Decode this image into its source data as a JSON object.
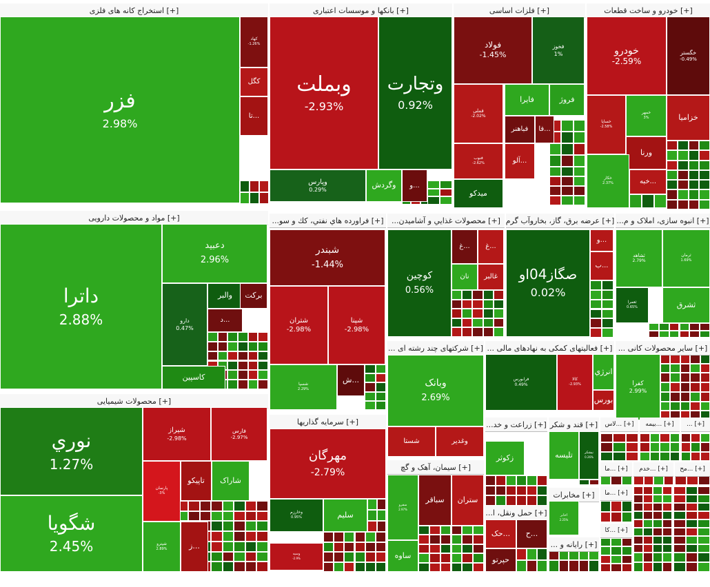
{
  "colors": {
    "pos_strong": "#2fa81f",
    "pos_mid": "#1f8a14",
    "pos_dark": "#0f5d0f",
    "neg_strong": "#c4161c",
    "neg_mid": "#a01414",
    "neg_dark": "#6f0f0f"
  },
  "sectors": [
    {
      "key": "mining",
      "label": "[+] استخراج کانه های فلزی",
      "stocks": [
        {
          "name": "فزر",
          "pct": "2.98%",
          "color": "#2fa81f"
        },
        {
          "name": "کهاد",
          "pct": "-1.26%",
          "color": "#7e1010"
        },
        {
          "name": "کگل",
          "pct": "",
          "color": "#b41818"
        },
        {
          "name": "تا...",
          "pct": "",
          "color": "#a31313"
        }
      ]
    },
    {
      "key": "banks",
      "label": "[+] بانکها و موسسات اعتباری",
      "stocks": [
        {
          "name": "وبملت",
          "pct": "-2.93%",
          "color": "#b8141a"
        },
        {
          "name": "وتجارت",
          "pct": "0.92%",
          "color": "#0f5d0f"
        },
        {
          "name": "وپارس",
          "pct": "0.29%",
          "color": "#17621a"
        },
        {
          "name": "وگردش",
          "pct": "",
          "color": "#2fa81f"
        },
        {
          "name": "و...",
          "pct": "",
          "color": "#6b0d0d"
        }
      ]
    },
    {
      "key": "metals",
      "label": "[+] فلزات اساسی",
      "stocks": [
        {
          "name": "فولاد",
          "pct": "-1.45%",
          "color": "#7a1010"
        },
        {
          "name": "فخوز",
          "pct": "1%",
          "color": "#155f17"
        },
        {
          "name": "فملی",
          "pct": "-2.02%",
          "color": "#b41818"
        },
        {
          "name": "فایرا",
          "pct": "",
          "color": "#2fa81f"
        },
        {
          "name": "فروژ",
          "pct": "",
          "color": "#2a9e1c"
        },
        {
          "name": "فباهنر",
          "pct": "",
          "color": "#6f0f0f"
        },
        {
          "name": "فا...",
          "pct": "",
          "color": "#7a1010"
        },
        {
          "name": "فنوب",
          "pct": "-2.62%",
          "color": "#b41818"
        },
        {
          "name": "آلو...",
          "pct": "",
          "color": "#b41818"
        },
        {
          "name": "میدکو",
          "pct": "",
          "color": "#0f5d0f"
        }
      ]
    },
    {
      "key": "auto",
      "label": "[+] خودرو و ساخت قطعات",
      "stocks": [
        {
          "name": "خودرو",
          "pct": "-2.59%",
          "color": "#b8141a"
        },
        {
          "name": "خگستر",
          "pct": "-0.49%",
          "color": "#5e0b0b"
        },
        {
          "name": "خساپا",
          "pct": "-2.58%",
          "color": "#b41818"
        },
        {
          "name": "خمهر",
          "pct": "3%",
          "color": "#2fa81f"
        },
        {
          "name": "خزامیا",
          "pct": "",
          "color": "#b41818"
        },
        {
          "name": "ورنا",
          "pct": "",
          "color": "#a31313"
        },
        {
          "name": "خکار",
          "pct": "2.37%",
          "color": "#2fa81f"
        },
        {
          "name": "خبه...",
          "pct": "",
          "color": "#b41818"
        }
      ]
    },
    {
      "key": "pharma",
      "label": "[+] مواد و محصولات دارویی",
      "stocks": [
        {
          "name": "داترا",
          "pct": "2.88%",
          "color": "#2fa81f"
        },
        {
          "name": "دعبید",
          "pct": "2.96%",
          "color": "#2fa81f"
        },
        {
          "name": "دارو",
          "pct": "0.47%",
          "color": "#17621a"
        },
        {
          "name": "والبر",
          "pct": "",
          "color": "#0f5d0f"
        },
        {
          "name": "برکت",
          "pct": "",
          "color": "#6f0f0f"
        },
        {
          "name": "د...",
          "pct": "",
          "color": "#6f0f0f"
        },
        {
          "name": "کاسپین",
          "pct": "",
          "color": "#1f8a14"
        }
      ]
    },
    {
      "key": "chem",
      "label": "[+] محصولات شیمیایی",
      "stocks": [
        {
          "name": "نوري",
          "pct": "1.27%",
          "color": "#1f7d16"
        },
        {
          "name": "شگویا",
          "pct": "2.45%",
          "color": "#2fa81f"
        },
        {
          "name": "شیراز",
          "pct": "-2.98%",
          "color": "#b8141a"
        },
        {
          "name": "فارس",
          "pct": "-2.97%",
          "color": "#b8141a"
        },
        {
          "name": "پارسان",
          "pct": "-3%",
          "color": "#d4161c"
        },
        {
          "name": "تاپیکو",
          "pct": "",
          "color": "#a31313"
        },
        {
          "name": "شاراک",
          "pct": "",
          "color": "#2fa81f"
        },
        {
          "name": "شپترو",
          "pct": "2.89%",
          "color": "#2fa81f"
        },
        {
          "name": "ز...",
          "pct": "",
          "color": "#a31313"
        }
      ]
    },
    {
      "key": "oil",
      "label": "[+] فراورده هاي نفتي، كك و سو...",
      "stocks": [
        {
          "name": "شبندر",
          "pct": "-1.44%",
          "color": "#7e1010"
        },
        {
          "name": "شتران",
          "pct": "-2.98%",
          "color": "#b8141a"
        },
        {
          "name": "شپنا",
          "pct": "-2.98%",
          "color": "#b8141a"
        },
        {
          "name": "شسپا",
          "pct": "2.29%",
          "color": "#2fa81f"
        },
        {
          "name": "ش...",
          "pct": "",
          "color": "#5e0b0b"
        }
      ]
    },
    {
      "key": "food",
      "label": "[+] محصولات غذايي و آشاميدن...",
      "stocks": [
        {
          "name": "کوچین",
          "pct": "0.56%",
          "color": "#0f5d0f"
        },
        {
          "name": "غ...",
          "pct": "",
          "color": "#6f0f0f"
        },
        {
          "name": "غ...",
          "pct": "",
          "color": "#b41818"
        },
        {
          "name": "نان",
          "pct": "",
          "color": "#2fa81f"
        },
        {
          "name": "غالبر",
          "pct": "",
          "color": "#b41818"
        }
      ]
    },
    {
      "key": "utility",
      "label": "[+] عرضه برق، گاز، بخاروآب گرم",
      "stocks": [
        {
          "name": "صگاز04او",
          "pct": "0.02%",
          "color": "#0f5d0f"
        },
        {
          "name": "و...",
          "pct": "",
          "color": "#b41818"
        },
        {
          "name": "ب...",
          "pct": "",
          "color": "#b41818"
        }
      ]
    },
    {
      "key": "realestate",
      "label": "[+] انبوه سازی، املاک و م...",
      "stocks": [
        {
          "name": "ثشاهد",
          "pct": "2.79%",
          "color": "#2fa81f"
        },
        {
          "name": "ثرمان",
          "pct": "1.69%",
          "color": "#2fa81f"
        },
        {
          "name": "ثعمرا",
          "pct": "0.65%",
          "color": "#0f5d0f"
        },
        {
          "name": "ثشرق",
          "pct": "",
          "color": "#2fa81f"
        }
      ]
    },
    {
      "key": "holding",
      "label": "[+] شرکتهای چند رشته ای ...",
      "stocks": [
        {
          "name": "وبانک",
          "pct": "2.69%",
          "color": "#2fa81f"
        },
        {
          "name": "شستا",
          "pct": "",
          "color": "#b41818"
        },
        {
          "name": "وغدیر",
          "pct": "",
          "color": "#b41818"
        }
      ]
    },
    {
      "key": "finserv",
      "label": "[+] فعالیتهای کمکی به نهادهای مالی ...",
      "stocks": [
        {
          "name": "فرابورس",
          "pct": "0.49%",
          "color": "#0f5d0f"
        },
        {
          "name": "کالا",
          "pct": "-2.93%",
          "color": "#b8141a"
        },
        {
          "name": "انرژي",
          "pct": "",
          "color": "#2fa81f"
        },
        {
          "name": "بورس",
          "pct": "",
          "color": "#b41818"
        }
      ]
    },
    {
      "key": "nonmetal",
      "label": "[+] سایر محصولات کانی ...",
      "stocks": [
        {
          "name": "کفرا",
          "pct": "2.99%",
          "color": "#2fa81f"
        }
      ]
    },
    {
      "key": "investment",
      "label": "[+] سرمايه گذاريها",
      "stocks": [
        {
          "name": "مهرگان",
          "pct": "-2.79%",
          "color": "#b8141a"
        },
        {
          "name": "وخارزم",
          "pct": "0.95%",
          "color": "#0f5d0f"
        },
        {
          "name": "سلیم",
          "pct": "",
          "color": "#2fa81f"
        },
        {
          "name": "وسپه",
          "pct": "-2.9%",
          "color": "#b8141a"
        }
      ]
    },
    {
      "key": "cement",
      "label": "[+] سیمان، آهک و گچ",
      "stocks": [
        {
          "name": "سفرو",
          "pct": "2.97%",
          "color": "#2fa81f"
        },
        {
          "name": "سباقر",
          "pct": "",
          "color": "#7a1010"
        },
        {
          "name": "ستران",
          "pct": "",
          "color": "#b41818"
        },
        {
          "name": "ساوه",
          "pct": "",
          "color": "#2fa81f"
        }
      ]
    },
    {
      "key": "agri",
      "label": "[+] زراعت و خد...",
      "stocks": [
        {
          "name": "زکوثر",
          "pct": "",
          "color": "#2fa81f"
        }
      ]
    },
    {
      "key": "sugar",
      "label": "[+] قند و شکر",
      "stocks": [
        {
          "name": "تلیسه",
          "pct": "",
          "color": "#2fa81f"
        },
        {
          "name": "نیشکر",
          "pct": "0.26%",
          "color": "#0f5d0f"
        }
      ]
    },
    {
      "key": "transport",
      "label": "[+] حمل ونقل، ا...",
      "stocks": [
        {
          "name": "حک...",
          "pct": "",
          "color": "#b41818"
        },
        {
          "name": "ح...",
          "pct": "",
          "color": "#6f0f0f"
        },
        {
          "name": "حپرتو",
          "pct": "",
          "color": "#6f0f0f"
        }
      ]
    },
    {
      "key": "telecom",
      "label": "[+] مخابرات",
      "stocks": [
        {
          "name": "اخابر",
          "pct": "2.25%",
          "color": "#2fa81f"
        }
      ]
    },
    {
      "key": "computer",
      "label": "[+] رایانه و ...",
      "stocks": []
    },
    {
      "key": "s1",
      "label": "[+] ...لاس",
      "stocks": []
    },
    {
      "key": "s2",
      "label": "[+] ...بیمه",
      "stocks": []
    },
    {
      "key": "s3",
      "label": "[+] ...",
      "stocks": []
    },
    {
      "key": "s4",
      "label": "[+] ...ما",
      "stocks": []
    },
    {
      "key": "s5",
      "label": "[+] ...خدم",
      "stocks": []
    },
    {
      "key": "s6",
      "label": "[+] ...مح",
      "stocks": []
    },
    {
      "key": "s7",
      "label": "[+] ...ما",
      "stocks": []
    },
    {
      "key": "s8",
      "label": "[+] ...کا",
      "stocks": []
    }
  ]
}
